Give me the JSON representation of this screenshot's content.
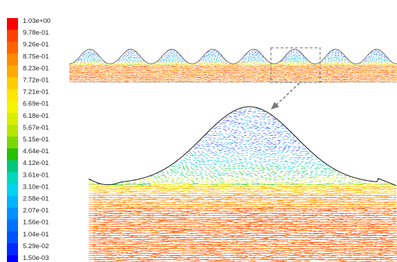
{
  "colorbar": {
    "labels": [
      "1.03e+00",
      "9.78e-01",
      "9.26e-01",
      "8.75e-01",
      "8.23e-01",
      "7.72e-01",
      "7.21e-01",
      "6.69e-01",
      "6.18e-01",
      "5.67e-01",
      "5.15e-01",
      "4.64e-01",
      "4.12e-01",
      "3.61e-01",
      "3.10e-01",
      "2.58e-01",
      "2.07e-01",
      "1.56e-01",
      "1.04e-01",
      "5.29e-02",
      "1.50e-03"
    ],
    "colors": [
      "#ff0000",
      "#ff4000",
      "#ff6400",
      "#ff8c00",
      "#ffaa00",
      "#ffcc00",
      "#ffe600",
      "#f4f400",
      "#d8f000",
      "#b4e600",
      "#7ad800",
      "#28c000",
      "#00c87a",
      "#00d8c0",
      "#00d4f0",
      "#00b4ff",
      "#0090ff",
      "#0070ff",
      "#0050ff",
      "#0028ff",
      "#0000ff"
    ]
  },
  "overview": {
    "crest_count": 8,
    "zoom_crest_index": 5
  },
  "vector_field": {
    "colors_by_height": [
      "#ff4a00",
      "#ff7a00",
      "#ffa000",
      "#ffc800",
      "#f0e800",
      "#a8e000",
      "#30c830",
      "#00d0c0",
      "#20b0ff",
      "#4080ff",
      "#2040ff"
    ]
  }
}
